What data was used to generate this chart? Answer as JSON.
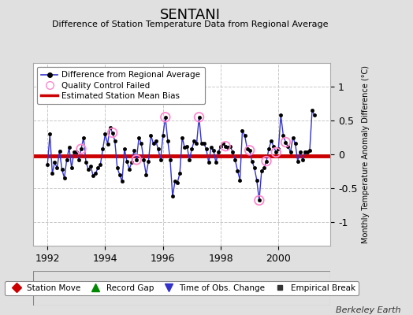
{
  "title": "SENTANI",
  "subtitle": "Difference of Station Temperature Data from Regional Average",
  "ylabel_right": "Monthly Temperature Anomaly Difference (°C)",
  "xlim": [
    1991.5,
    2001.8
  ],
  "ylim": [
    -1.35,
    1.35
  ],
  "yticks": [
    -1,
    -0.5,
    0,
    0.5,
    1
  ],
  "xticks": [
    1992,
    1994,
    1996,
    1998,
    2000
  ],
  "bias_value": -0.02,
  "background_color": "#e0e0e0",
  "plot_bg_color": "#ffffff",
  "grid_color": "#c8c8c8",
  "line_color": "#3333cc",
  "marker_color": "#000000",
  "bias_color": "#cc0000",
  "qc_color": "#ff88cc",
  "credit": "Berkeley Earth",
  "months": [
    1992.0,
    1992.083,
    1992.167,
    1992.25,
    1992.333,
    1992.417,
    1992.5,
    1992.583,
    1992.667,
    1992.75,
    1992.833,
    1992.917,
    1993.0,
    1993.083,
    1993.167,
    1993.25,
    1993.333,
    1993.417,
    1993.5,
    1993.583,
    1993.667,
    1993.75,
    1993.833,
    1993.917,
    1994.0,
    1994.083,
    1994.167,
    1994.25,
    1994.333,
    1994.417,
    1994.5,
    1994.583,
    1994.667,
    1994.75,
    1994.833,
    1994.917,
    1995.0,
    1995.083,
    1995.167,
    1995.25,
    1995.333,
    1995.417,
    1995.5,
    1995.583,
    1995.667,
    1995.75,
    1995.833,
    1995.917,
    1996.0,
    1996.083,
    1996.167,
    1996.25,
    1996.333,
    1996.417,
    1996.5,
    1996.583,
    1996.667,
    1996.75,
    1996.833,
    1996.917,
    1997.0,
    1997.083,
    1997.167,
    1997.25,
    1997.333,
    1997.417,
    1997.5,
    1997.583,
    1997.667,
    1997.75,
    1997.833,
    1997.917,
    1998.0,
    1998.083,
    1998.167,
    1998.25,
    1998.333,
    1998.417,
    1998.5,
    1998.583,
    1998.667,
    1998.75,
    1998.833,
    1998.917,
    1999.0,
    1999.083,
    1999.167,
    1999.25,
    1999.333,
    1999.417,
    1999.5,
    1999.583,
    1999.667,
    1999.75,
    1999.833,
    1999.917,
    2000.0,
    2000.083,
    2000.167,
    2000.25,
    2000.333,
    2000.417,
    2000.5,
    2000.583,
    2000.667,
    2000.75,
    2000.833,
    2000.917,
    2001.0,
    2001.083,
    2001.167,
    2001.25
  ],
  "values": [
    -0.15,
    0.3,
    -0.28,
    -0.12,
    -0.2,
    0.05,
    -0.22,
    -0.35,
    -0.08,
    0.1,
    -0.2,
    0.03,
    0.03,
    -0.08,
    0.08,
    0.25,
    -0.12,
    -0.22,
    -0.18,
    -0.32,
    -0.28,
    -0.2,
    -0.15,
    0.08,
    0.3,
    0.15,
    0.4,
    0.32,
    0.2,
    -0.2,
    -0.3,
    -0.4,
    0.08,
    -0.1,
    -0.22,
    -0.12,
    0.06,
    -0.08,
    0.25,
    0.16,
    -0.08,
    -0.3,
    -0.1,
    0.28,
    0.16,
    0.2,
    0.08,
    -0.08,
    0.28,
    0.55,
    0.2,
    -0.08,
    -0.62,
    -0.4,
    -0.42,
    -0.28,
    0.25,
    0.1,
    0.12,
    -0.08,
    0.08,
    0.2,
    0.16,
    0.55,
    0.16,
    0.16,
    0.08,
    -0.12,
    0.1,
    0.06,
    -0.12,
    0.03,
    0.12,
    0.16,
    0.12,
    0.1,
    0.12,
    0.03,
    -0.08,
    -0.24,
    -0.38,
    0.35,
    0.28,
    0.08,
    0.06,
    -0.1,
    -0.2,
    -0.38,
    -0.68,
    -0.24,
    -0.2,
    -0.1,
    0.08,
    0.2,
    0.12,
    0.03,
    0.08,
    0.58,
    0.28,
    0.18,
    0.12,
    0.03,
    0.25,
    0.16,
    -0.1,
    0.03,
    -0.08,
    0.03,
    0.03,
    0.06,
    0.65,
    0.58
  ],
  "qc_indices": [
    14,
    27,
    37,
    49,
    63,
    74,
    84,
    88,
    91,
    95,
    99
  ],
  "title_fontsize": 13,
  "subtitle_fontsize": 8,
  "tick_fontsize": 9,
  "ylabel_fontsize": 7
}
